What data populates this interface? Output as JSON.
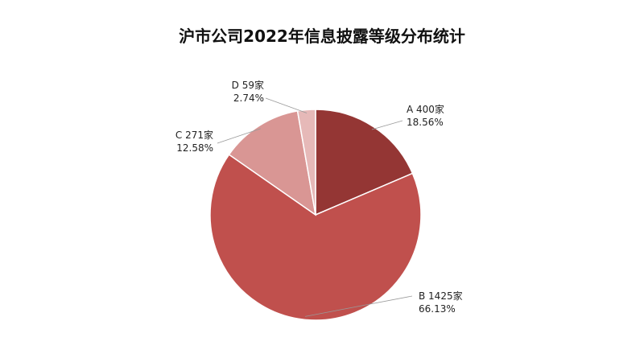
{
  "chart_data": {
    "type": "pie",
    "title": "沪市公司2022年信息披露等级分布统计",
    "values": [
      400,
      1425,
      271,
      59
    ],
    "value_labels": [
      "A 400家",
      "B 1425家",
      "C 271家",
      "D 59家"
    ],
    "percentages": [
      18.56,
      66.13,
      12.58,
      2.74
    ],
    "percent_labels": [
      "18.56%",
      "66.13%",
      "12.58%",
      "2.74%"
    ],
    "colors": [
      "#943634",
      "#c0504d",
      "#d99694",
      "#e6b9b8"
    ]
  }
}
